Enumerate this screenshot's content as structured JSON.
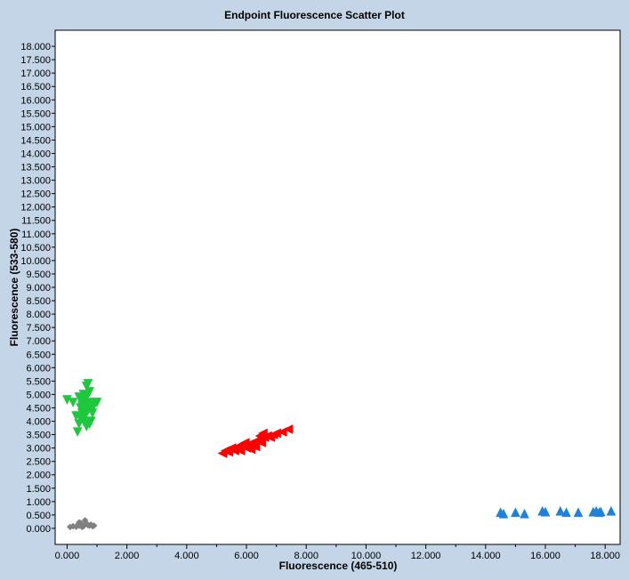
{
  "chart_data": {
    "type": "scatter",
    "title": "Endpoint Fluorescence Scatter Plot",
    "xlabel": "Fluorescence (465-510)",
    "ylabel": "Fluorescence (533-580)",
    "xlim": [
      -0.4,
      18.5
    ],
    "ylim": [
      -0.6,
      18.6
    ],
    "x_ticks": [
      0,
      2,
      4,
      6,
      8,
      10,
      12,
      14,
      16,
      18
    ],
    "x_tick_labels": [
      "0.000",
      "2.000",
      "4.000",
      "6.000",
      "8.000",
      "10.000",
      "12.000",
      "14.000",
      "16.000",
      "18.000"
    ],
    "y_ticks": [
      0,
      0.5,
      1,
      1.5,
      2,
      2.5,
      3,
      3.5,
      4,
      4.5,
      5,
      5.5,
      6,
      6.5,
      7,
      7.5,
      8,
      8.5,
      9,
      9.5,
      10,
      10.5,
      11,
      11.5,
      12,
      12.5,
      13,
      13.5,
      14,
      14.5,
      15,
      15.5,
      16,
      16.5,
      17,
      17.5,
      18
    ],
    "y_tick_labels": [
      "0.000",
      "0.500",
      "1.000",
      "1.500",
      "2.000",
      "2.500",
      "3.000",
      "3.500",
      "4.000",
      "4.500",
      "5.000",
      "5.500",
      "6.000",
      "6.500",
      "7.000",
      "7.500",
      "8.000",
      "8.500",
      "9.000",
      "9.500",
      "10.000",
      "10.500",
      "11.000",
      "11.500",
      "12.000",
      "12.500",
      "13.000",
      "13.500",
      "14.000",
      "14.500",
      "15.000",
      "15.500",
      "16.000",
      "16.500",
      "17.000",
      "17.500",
      "18.000"
    ],
    "grid": false,
    "series": [
      {
        "marker": "triangle-down",
        "color": "#1ec83c",
        "points": [
          [
            0.0,
            4.8
          ],
          [
            0.2,
            4.7
          ],
          [
            0.4,
            4.9
          ],
          [
            0.45,
            4.5
          ],
          [
            0.5,
            4.8
          ],
          [
            0.55,
            5.0
          ],
          [
            0.6,
            4.6
          ],
          [
            0.65,
            5.3
          ],
          [
            0.7,
            5.4
          ],
          [
            0.75,
            5.1
          ],
          [
            0.5,
            4.3
          ],
          [
            0.6,
            4.2
          ],
          [
            0.7,
            4.4
          ],
          [
            0.8,
            4.0
          ],
          [
            0.85,
            4.3
          ],
          [
            0.9,
            4.6
          ],
          [
            0.95,
            4.7
          ],
          [
            0.55,
            4.0
          ],
          [
            0.45,
            4.1
          ],
          [
            0.4,
            3.9
          ],
          [
            0.35,
            3.6
          ],
          [
            0.65,
            3.8
          ],
          [
            0.75,
            3.9
          ],
          [
            0.7,
            4.7
          ],
          [
            0.6,
            4.5
          ],
          [
            0.8,
            4.5
          ],
          [
            0.3,
            4.2
          ],
          [
            1.0,
            4.7
          ],
          [
            0.65,
            4.9
          ],
          [
            0.5,
            4.6
          ]
        ]
      },
      {
        "marker": "triangle-left",
        "color": "#ff0000",
        "points": [
          [
            5.2,
            2.8
          ],
          [
            5.4,
            2.85
          ],
          [
            5.6,
            2.9
          ],
          [
            5.5,
            3.0
          ],
          [
            5.7,
            3.05
          ],
          [
            5.8,
            2.9
          ],
          [
            5.9,
            3.1
          ],
          [
            6.0,
            3.0
          ],
          [
            6.1,
            3.15
          ],
          [
            6.2,
            3.1
          ],
          [
            6.3,
            3.25
          ],
          [
            6.4,
            3.3
          ],
          [
            6.5,
            3.2
          ],
          [
            6.6,
            3.4
          ],
          [
            6.7,
            3.45
          ],
          [
            6.8,
            3.4
          ],
          [
            6.9,
            3.5
          ],
          [
            7.0,
            3.55
          ],
          [
            7.2,
            3.6
          ],
          [
            7.4,
            3.7
          ],
          [
            6.45,
            3.45
          ],
          [
            6.3,
            3.05
          ],
          [
            5.95,
            3.2
          ],
          [
            6.15,
            2.95
          ],
          [
            6.55,
            3.55
          ],
          [
            5.3,
            2.9
          ]
        ]
      },
      {
        "marker": "triangle-up",
        "color": "#1e82dc",
        "points": [
          [
            14.5,
            0.6
          ],
          [
            14.6,
            0.55
          ],
          [
            15.0,
            0.6
          ],
          [
            15.3,
            0.55
          ],
          [
            15.9,
            0.65
          ],
          [
            16.0,
            0.62
          ],
          [
            16.5,
            0.65
          ],
          [
            16.7,
            0.6
          ],
          [
            17.1,
            0.6
          ],
          [
            17.6,
            0.62
          ],
          [
            17.7,
            0.65
          ],
          [
            17.8,
            0.6
          ],
          [
            17.85,
            0.63
          ],
          [
            18.2,
            0.65
          ]
        ]
      },
      {
        "marker": "diamond",
        "color": "#808080",
        "points": [
          [
            0.1,
            0.05
          ],
          [
            0.2,
            0.08
          ],
          [
            0.3,
            0.06
          ],
          [
            0.35,
            0.12
          ],
          [
            0.4,
            0.1
          ],
          [
            0.45,
            0.2
          ],
          [
            0.5,
            0.15
          ],
          [
            0.55,
            0.08
          ],
          [
            0.6,
            0.3
          ],
          [
            0.65,
            0.18
          ],
          [
            0.7,
            0.12
          ],
          [
            0.75,
            0.1
          ],
          [
            0.8,
            0.14
          ],
          [
            0.85,
            0.08
          ],
          [
            0.9,
            0.1
          ],
          [
            0.5,
            0.05
          ],
          [
            0.4,
            0.22
          ]
        ]
      }
    ]
  }
}
